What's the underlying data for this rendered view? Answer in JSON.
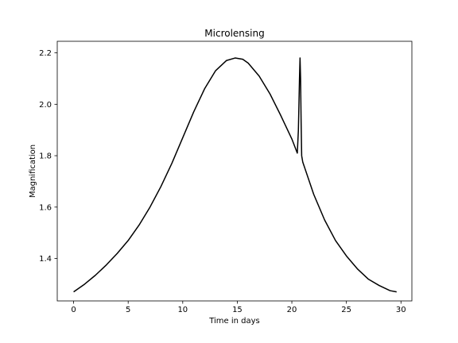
{
  "chart_data": {
    "type": "line",
    "title": "Microlensing",
    "xlabel": "Time in days",
    "ylabel": "Magnification",
    "xlim": [
      -1.5,
      31.0
    ],
    "ylim": [
      1.235,
      2.245
    ],
    "xticks": [
      0,
      5,
      10,
      15,
      20,
      25,
      30
    ],
    "yticks": [
      1.4,
      1.6,
      1.8,
      2.0,
      2.2
    ],
    "ytick_labels": [
      "1.4",
      "1.6",
      "1.8",
      "2.0",
      "2.2"
    ],
    "grid": false,
    "series": [
      {
        "color": "#000000",
        "x": [
          0,
          1,
          2,
          3,
          4,
          5,
          6,
          7,
          8,
          9,
          10,
          11,
          12,
          13,
          14,
          14.8,
          15.5,
          16,
          17,
          18,
          19,
          20,
          20.5,
          20.6,
          20.7,
          20.75,
          20.8,
          20.85,
          20.9,
          21.0,
          22,
          23,
          24,
          25,
          26,
          27,
          28,
          29,
          29.6
        ],
        "y": [
          1.27,
          1.3,
          1.335,
          1.375,
          1.42,
          1.47,
          1.53,
          1.6,
          1.68,
          1.77,
          1.87,
          1.97,
          2.06,
          2.13,
          2.17,
          2.18,
          2.175,
          2.16,
          2.11,
          2.04,
          1.955,
          1.865,
          1.81,
          1.9,
          2.1,
          2.18,
          2.1,
          1.93,
          1.8,
          1.775,
          1.65,
          1.55,
          1.47,
          1.41,
          1.36,
          1.32,
          1.295,
          1.275,
          1.27
        ]
      }
    ]
  }
}
